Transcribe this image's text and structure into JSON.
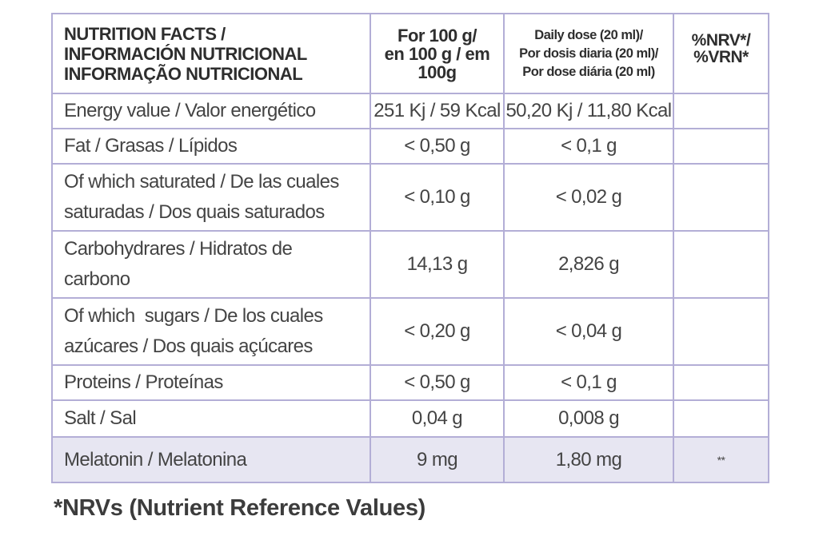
{
  "header": {
    "main": [
      "NUTRITION FACTS /",
      "INFORMACIÓN NUTRICIONAL",
      "INFORMAÇÃO NUTRICIONAL"
    ],
    "per100": [
      "For 100 g/",
      "en 100 g / em",
      "100g"
    ],
    "daily": [
      "Daily dose (20 ml)/",
      "Por dosis diaria (20 ml)/",
      "Por dose diária (20 ml)"
    ],
    "nrv": [
      "%NRV*/",
      "%VRN*"
    ]
  },
  "rows": [
    {
      "name": [
        "Energy value / Valor energético"
      ],
      "per100": "251 Kj / 59 Kcal",
      "daily": "50,20 Kj / 11,80 Kcal",
      "nrv": ""
    },
    {
      "name": [
        "Fat / Grasas / Lípidos"
      ],
      "per100": "< 0,50 g",
      "daily": "< 0,1 g",
      "nrv": ""
    },
    {
      "name": [
        "Of which saturated / De las cuales",
        "saturadas / Dos quais saturados"
      ],
      "per100": "< 0,10 g",
      "daily": "< 0,02 g",
      "nrv": ""
    },
    {
      "name": [
        "Carbohydrares / Hidratos de",
        "carbono"
      ],
      "per100": "14,13 g",
      "daily": "2,826 g",
      "nrv": ""
    },
    {
      "name": [
        "Of which  sugars / De los cuales",
        "azúcares / Dos quais açúcares"
      ],
      "per100": "< 0,20 g",
      "daily": "< 0,04 g",
      "nrv": ""
    },
    {
      "name": [
        "Proteins / Proteínas"
      ],
      "per100": "< 0,50 g",
      "daily": "< 0,1 g",
      "nrv": ""
    },
    {
      "name": [
        "Salt / Sal"
      ],
      "per100": "0,04 g",
      "daily": "0,008 g",
      "nrv": ""
    },
    {
      "name": [
        "Melatonin / Melatonina"
      ],
      "per100": "9 mg",
      "daily": "1,80 mg",
      "nrv": "**"
    }
  ],
  "footnote": "*NRVs (Nutrient Reference Values)"
}
